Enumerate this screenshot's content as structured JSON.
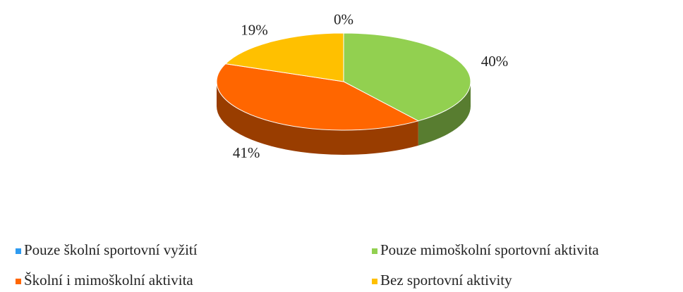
{
  "chart_data": {
    "type": "pie3d",
    "categories": [
      "Pouze školní sportovní vyžití",
      "Pouze mimoškolní sportovní aktivita",
      "Školní i mimoškolní aktivita",
      "Bez sportovní aktivity"
    ],
    "values": [
      0,
      40,
      41,
      19
    ],
    "value_labels": [
      "0%",
      "40%",
      "41%",
      "19%"
    ],
    "colors": [
      "#2e9bf0",
      "#92d050",
      "#ff6600",
      "#ffc000"
    ],
    "legend": "bottom"
  }
}
